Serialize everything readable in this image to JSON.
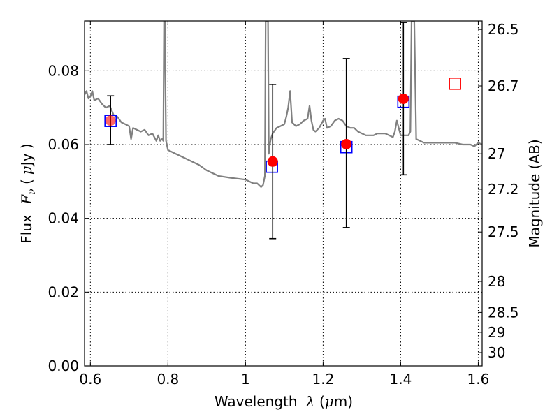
{
  "chart_data": {
    "type": "scatter",
    "title": "",
    "xlabel": {
      "main": "Wavelength",
      "symbol": "λ",
      "unit_open": " (",
      "unit_mu": "μ",
      "unit_rest": "m)"
    },
    "ylabel": {
      "main": "Flux",
      "symbol": "F",
      "subscript": "ν",
      "unit_open": " (",
      "unit_mu": "μ",
      "unit_rest": "Jy )"
    },
    "ylabel_right": "Magnitude (AB)",
    "xlim": [
      0.585,
      1.61
    ],
    "ylim": [
      0.0,
      0.0935
    ],
    "grid": true,
    "x_ticks": [
      0.6,
      0.8,
      1.0,
      1.2,
      1.4,
      1.6
    ],
    "x_tick_labels": [
      "0.6",
      "0.8",
      "1",
      "1.2",
      "1.4",
      "1.6"
    ],
    "y_ticks": [
      0.0,
      0.02,
      0.04,
      0.06,
      0.08
    ],
    "y_tick_labels": [
      "0.00",
      "0.02",
      "0.04",
      "0.06",
      "0.08"
    ],
    "mag_ticks": [
      {
        "label": "26.5",
        "flux": 0.0912
      },
      {
        "label": "26.7",
        "flux": 0.0759
      },
      {
        "label": "27",
        "flux": 0.0575
      },
      {
        "label": "27.2",
        "flux": 0.0479
      },
      {
        "label": "27.5",
        "flux": 0.0363
      },
      {
        "label": "28",
        "flux": 0.0229
      },
      {
        "label": "28.5",
        "flux": 0.0145
      },
      {
        "label": "29",
        "flux": 0.0091
      },
      {
        "label": "30",
        "flux": 0.0036
      }
    ],
    "series": [
      {
        "style": "line",
        "color": "#808080",
        "x": [
          0.585,
          0.59,
          0.595,
          0.6,
          0.605,
          0.61,
          0.62,
          0.63,
          0.64,
          0.65,
          0.66,
          0.67,
          0.68,
          0.69,
          0.7,
          0.705,
          0.71,
          0.72,
          0.73,
          0.74,
          0.75,
          0.76,
          0.77,
          0.775,
          0.78,
          0.785,
          0.788,
          0.79,
          0.792,
          0.795,
          0.8,
          0.82,
          0.85,
          0.88,
          0.9,
          0.93,
          0.96,
          1.0,
          1.02,
          1.03,
          1.04,
          1.045,
          1.05,
          1.052,
          1.054,
          1.056,
          1.058,
          1.06,
          1.062,
          1.065,
          1.07,
          1.08,
          1.09,
          1.1,
          1.105,
          1.11,
          1.115,
          1.12,
          1.13,
          1.14,
          1.15,
          1.16,
          1.165,
          1.17,
          1.175,
          1.18,
          1.19,
          1.2,
          1.205,
          1.21,
          1.22,
          1.23,
          1.24,
          1.25,
          1.26,
          1.27,
          1.28,
          1.29,
          1.3,
          1.31,
          1.32,
          1.33,
          1.34,
          1.35,
          1.36,
          1.37,
          1.38,
          1.385,
          1.39,
          1.395,
          1.4,
          1.42,
          1.425,
          1.428,
          1.43,
          1.432,
          1.435,
          1.44,
          1.45,
          1.46,
          1.48,
          1.5,
          1.52,
          1.54,
          1.56,
          1.58,
          1.59,
          1.6,
          1.61
        ],
        "values": [
          0.0735,
          0.0745,
          0.0725,
          0.073,
          0.0745,
          0.072,
          0.0725,
          0.071,
          0.07,
          0.0705,
          0.068,
          0.0675,
          0.066,
          0.0655,
          0.065,
          0.0615,
          0.0645,
          0.064,
          0.0635,
          0.064,
          0.0625,
          0.063,
          0.061,
          0.0625,
          0.061,
          0.0615,
          0.061,
          0.0935,
          0.0935,
          0.061,
          0.0585,
          0.0575,
          0.056,
          0.0545,
          0.053,
          0.0515,
          0.051,
          0.0505,
          0.0495,
          0.0495,
          0.0485,
          0.049,
          0.0515,
          0.0935,
          0.0935,
          0.0935,
          0.0935,
          0.0575,
          0.0595,
          0.0615,
          0.063,
          0.0645,
          0.065,
          0.0655,
          0.0675,
          0.07,
          0.0745,
          0.066,
          0.065,
          0.0655,
          0.0665,
          0.067,
          0.0705,
          0.0665,
          0.064,
          0.0635,
          0.0645,
          0.0665,
          0.067,
          0.0645,
          0.065,
          0.0665,
          0.067,
          0.0665,
          0.065,
          0.0645,
          0.0645,
          0.0635,
          0.063,
          0.0625,
          0.0625,
          0.0625,
          0.063,
          0.063,
          0.063,
          0.0625,
          0.062,
          0.0635,
          0.0665,
          0.0645,
          0.0625,
          0.0625,
          0.0635,
          0.0935,
          0.0935,
          0.0935,
          0.0935,
          0.0615,
          0.061,
          0.0605,
          0.0605,
          0.0605,
          0.0605,
          0.0605,
          0.06,
          0.06,
          0.0595,
          0.0605,
          0.06
        ]
      },
      {
        "style": "open-square",
        "color": "#0000ff",
        "x": [
          0.652,
          1.068,
          1.26,
          1.407
        ],
        "values": [
          0.0664,
          0.054,
          0.0593,
          0.0716
        ]
      },
      {
        "style": "open-square",
        "color": "#ff0000",
        "x": [
          1.54
        ],
        "values": [
          0.0765
        ]
      },
      {
        "style": "filled-circle",
        "color": "#ff0000",
        "x": [
          0.652,
          1.07,
          1.26,
          1.407
        ],
        "values": [
          0.0665,
          0.0554,
          0.0601,
          0.0724
        ],
        "err_low": [
          0.06,
          0.0345,
          0.0375,
          0.0518
        ],
        "err_high": [
          0.0732,
          0.0763,
          0.0833,
          0.0931
        ]
      }
    ]
  }
}
